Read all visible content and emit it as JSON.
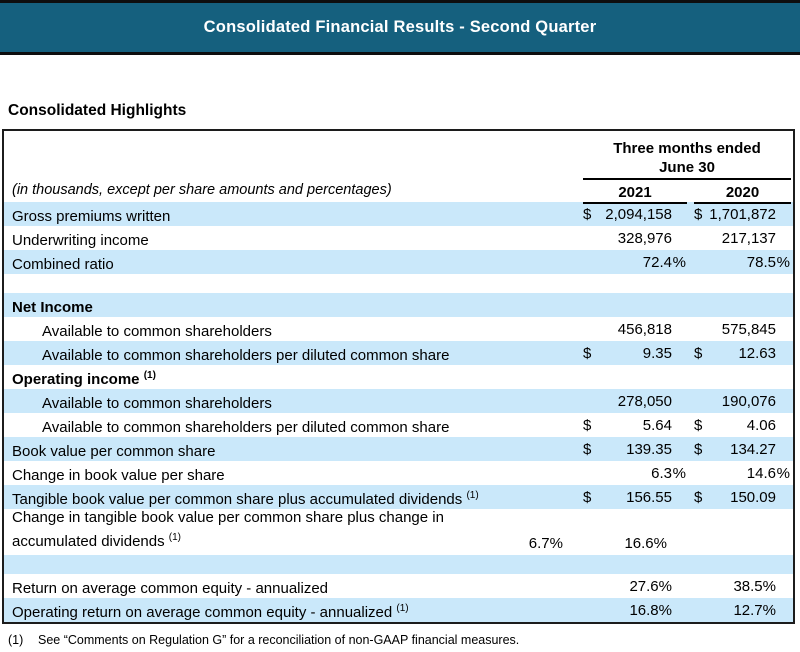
{
  "colors": {
    "banner_bg": "#15607E",
    "row_highlight": "#CAE8FA"
  },
  "banner": {
    "title": "Consolidated Financial Results - Second Quarter"
  },
  "page": {
    "section_title": "Consolidated Highlights"
  },
  "table": {
    "period": {
      "line1": "Three months ended",
      "line2": "June 30"
    },
    "note": "(in thousands, except per share amounts and percentages)",
    "years": [
      "2021",
      "2020"
    ],
    "rows": [
      {
        "label": "Gross premiums written",
        "sup": "",
        "c2021": {
          "pre": "$",
          "val": "2,094,158",
          "suf": ""
        },
        "c2020": {
          "pre": "$",
          "val": "1,701,872",
          "suf": ""
        }
      },
      {
        "label": "Underwriting income",
        "sup": "",
        "c2021": {
          "pre": "",
          "val": "328,976",
          "suf": ""
        },
        "c2020": {
          "pre": "",
          "val": "217,137",
          "suf": ""
        }
      },
      {
        "label": "Combined ratio",
        "sup": "",
        "c2021": {
          "pre": "",
          "val": "72.4",
          "suf": "%"
        },
        "c2020": {
          "pre": "",
          "val": "78.5",
          "suf": "%"
        }
      },
      {
        "label": "",
        "sup": ""
      },
      {
        "label": "Net Income",
        "sup": ""
      },
      {
        "label": "Available to common shareholders",
        "sup": "",
        "c2021": {
          "pre": "",
          "val": "456,818",
          "suf": ""
        },
        "c2020": {
          "pre": "",
          "val": "575,845",
          "suf": ""
        }
      },
      {
        "label": "Available to common shareholders per diluted common share",
        "sup": "",
        "c2021": {
          "pre": "$",
          "val": "9.35",
          "suf": ""
        },
        "c2020": {
          "pre": "$",
          "val": "12.63",
          "suf": ""
        }
      },
      {
        "label": "Operating income",
        "sup": "(1)"
      },
      {
        "label": "Available to common shareholders",
        "sup": "",
        "c2021": {
          "pre": "",
          "val": "278,050",
          "suf": ""
        },
        "c2020": {
          "pre": "",
          "val": "190,076",
          "suf": ""
        }
      },
      {
        "label": "Available to common shareholders per diluted common share",
        "sup": "",
        "c2021": {
          "pre": "$",
          "val": "5.64",
          "suf": ""
        },
        "c2020": {
          "pre": "$",
          "val": "4.06",
          "suf": ""
        }
      },
      {
        "label": "Book value per common share",
        "sup": "",
        "c2021": {
          "pre": "$",
          "val": "139.35",
          "suf": ""
        },
        "c2020": {
          "pre": "$",
          "val": "134.27",
          "suf": ""
        }
      },
      {
        "label": "Change in book value per share",
        "sup": "",
        "c2021": {
          "pre": "",
          "val": "6.3",
          "suf": "%"
        },
        "c2020": {
          "pre": "",
          "val": "14.6",
          "suf": "%"
        }
      },
      {
        "label": "Tangible book value per common share plus accumulated dividends",
        "sup": "(1)",
        "c2021": {
          "pre": "$",
          "val": "156.55",
          "suf": ""
        },
        "c2020": {
          "pre": "$",
          "val": "150.09",
          "suf": ""
        }
      },
      {
        "label": "Change in tangible book value per common share plus change in accumulated dividends",
        "sup": "(1)",
        "c2021": {
          "pre": "",
          "val": "6.7%",
          "suf": ""
        },
        "c2020": {
          "pre": "",
          "val": "16.6%",
          "suf": ""
        }
      },
      {
        "label": "",
        "sup": ""
      },
      {
        "label": "Return on average common equity - annualized",
        "sup": "",
        "c2021": {
          "pre": "",
          "val": "27.6%",
          "suf": ""
        },
        "c2020": {
          "pre": "",
          "val": "38.5%",
          "suf": ""
        }
      },
      {
        "label": "Operating return on average common equity - annualized",
        "sup": "(1)",
        "c2021": {
          "pre": "",
          "val": "16.8%",
          "suf": ""
        },
        "c2020": {
          "pre": "",
          "val": "12.7%",
          "suf": ""
        }
      }
    ],
    "footnote": {
      "marker": "(1)",
      "text": "See “Comments on Regulation G” for a reconciliation of non-GAAP financial measures."
    }
  }
}
